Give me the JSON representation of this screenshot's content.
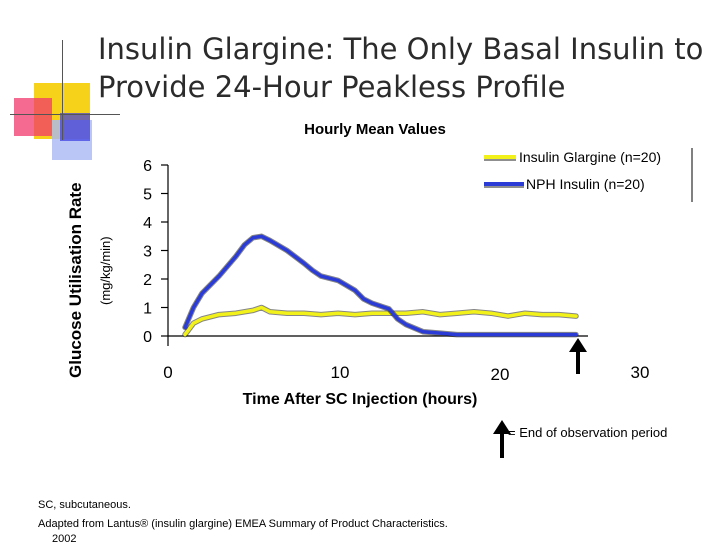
{
  "slide": {
    "title_line1": "Insulin Glargine: The Only Basal Insulin to",
    "title_line2": "Provide 24-Hour Peakless Profile",
    "end_note": "= End of observation period",
    "footnote_line1": "SC, subcutaneous.",
    "footnote_line2": "Adapted from Lantus® (insulin glargine) EMEA Summary of Product Characteristics.",
    "footnote_line3": "2002",
    "colors": {
      "deco_yellow": "#f7d21a",
      "deco_red": "#f0386b",
      "deco_blue": "#3b3be0",
      "deco_lightblue": "#a9b8f2",
      "title_text": "#2b2b2b"
    }
  },
  "chart_data": {
    "type": "line",
    "title": "Hourly Mean Values",
    "ylabel_outer": "Glucose Utilisation Rate",
    "ylabel_inner": "(mg/kg/min)",
    "xlabel": "Time After SC Injection (hours)",
    "xlim": [
      0,
      30
    ],
    "ylim": [
      0,
      6
    ],
    "x_ticks": [
      "0",
      "10",
      "20",
      "30"
    ],
    "y_ticks": [
      "0",
      "1",
      "2",
      "3",
      "4",
      "5",
      "6"
    ],
    "legend_position": "top-right",
    "series": [
      {
        "name": "Insulin Glargine (n=20)",
        "color": "#f2f21a",
        "x": [
          1,
          1.5,
          2,
          3,
          4,
          5,
          5.5,
          6,
          7,
          8,
          9,
          10,
          11,
          12,
          13,
          14,
          15,
          16,
          17,
          18,
          19,
          20,
          21,
          22,
          23,
          24
        ],
        "y": [
          0.05,
          0.45,
          0.6,
          0.75,
          0.8,
          0.9,
          1.0,
          0.85,
          0.8,
          0.8,
          0.75,
          0.8,
          0.75,
          0.8,
          0.8,
          0.8,
          0.85,
          0.75,
          0.8,
          0.85,
          0.8,
          0.7,
          0.8,
          0.75,
          0.75,
          0.7
        ]
      },
      {
        "name": "NPH Insulin (n=20)",
        "color": "#2b3bd6",
        "x": [
          1,
          1.5,
          2,
          3,
          4,
          4.5,
          5,
          5.5,
          6,
          7,
          8,
          8.5,
          9,
          10,
          11,
          11.5,
          12,
          13,
          13.5,
          14,
          15,
          16,
          17,
          18,
          19,
          20,
          21,
          22,
          23,
          24
        ],
        "y": [
          0.3,
          1.0,
          1.5,
          2.1,
          2.8,
          3.2,
          3.45,
          3.5,
          3.35,
          3.0,
          2.55,
          2.3,
          2.1,
          1.95,
          1.6,
          1.3,
          1.15,
          0.95,
          0.6,
          0.4,
          0.15,
          0.1,
          0.05,
          0.05,
          0.05,
          0.05,
          0.05,
          0.05,
          0.05,
          0.05
        ]
      }
    ],
    "end_of_observation_x": 24
  }
}
